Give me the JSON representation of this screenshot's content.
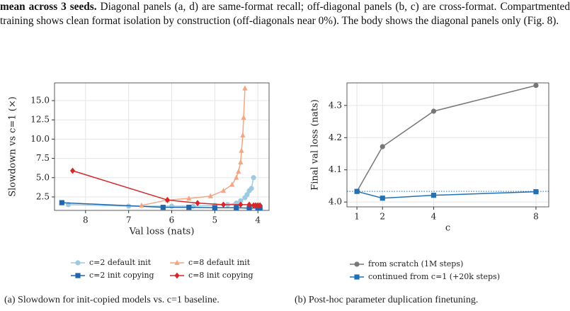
{
  "text": {
    "bold": "mean across 3 seeds.",
    "body": "Diagonal panels (a, d) are same-format recall; off-diagonal panels (b, c) are cross-format. Compartmented training shows clean format isolation by construction (off-diagonals near 0%). The body shows the diagonal panels only (Fig. 8)."
  },
  "chart_data": [
    {
      "type": "line",
      "xlabel": "Val loss (nats)",
      "ylabel": "Slowdown vs c=1 (×)",
      "xlim": [
        8.72,
        3.74
      ],
      "xticks": [
        8,
        7,
        6,
        5,
        4
      ],
      "ylim": [
        0.75,
        17.3
      ],
      "yticks": [
        2.5,
        {
          "value": 5.0,
          "label": "5.0"
        },
        7.5,
        {
          "value": 10.0,
          "label": "10.0"
        },
        12.5,
        {
          "value": 15.0,
          "label": "15.0"
        }
      ],
      "grid": true,
      "series": [
        {
          "name": "c=2 default init",
          "color": "#9ecae1",
          "marker": "circle",
          "x": [
            8.4,
            7.0,
            6.0,
            5.5,
            5.0,
            4.7,
            4.5,
            4.4,
            4.3,
            4.25,
            4.2,
            4.15,
            4.1
          ],
          "values": [
            1.5,
            1.3,
            1.3,
            1.3,
            1.4,
            1.5,
            1.7,
            2.0,
            2.4,
            2.8,
            3.3,
            3.6,
            5.0
          ]
        },
        {
          "name": "c=2 init copying",
          "color": "#2166ac",
          "marker": "square",
          "x": [
            8.55,
            6.2,
            5.6,
            5.0,
            4.5,
            4.2,
            4.0,
            3.95
          ],
          "values": [
            1.75,
            1.15,
            1.15,
            1.1,
            1.1,
            1.05,
            1.05,
            1.05
          ]
        },
        {
          "name": "c=8 default init",
          "color": "#f4a582",
          "marker": "triangle",
          "x": [
            6.7,
            6.1,
            5.6,
            5.1,
            4.8,
            4.6,
            4.5,
            4.45,
            4.4,
            4.38,
            4.35,
            4.33,
            4.3
          ],
          "values": [
            1.4,
            2.1,
            2.3,
            2.6,
            3.3,
            4.1,
            5.0,
            5.8,
            7.0,
            8.5,
            10.5,
            12.8,
            16.6
          ]
        },
        {
          "name": "c=8 init copying",
          "color": "#d62728",
          "marker": "diamond",
          "x": [
            8.3,
            6.1,
            5.4,
            4.8,
            4.4,
            4.2,
            4.1,
            4.05,
            4.0,
            3.95
          ],
          "values": [
            5.9,
            2.1,
            1.7,
            1.5,
            1.5,
            1.5,
            1.4,
            1.4,
            1.4,
            1.4
          ]
        }
      ],
      "caption": "(a) Slowdown for init-copied models vs. c=1 baseline."
    },
    {
      "type": "line",
      "xlabel": "c",
      "ylabel": "Final val loss (nats)",
      "xlim": [
        0.61,
        8.5
      ],
      "xticks": [
        1,
        2,
        4,
        8
      ],
      "ylim": [
        3.985,
        4.37
      ],
      "yticks": [
        {
          "value": 4.0,
          "label": "4.0"
        },
        4.1,
        4.2,
        4.3
      ],
      "grid": true,
      "hline": 4.033,
      "hline_color": "#2166ac",
      "series": [
        {
          "name": "from scratch (1M steps)",
          "color": "#777777",
          "marker": "circle",
          "x": [
            1,
            2,
            4,
            8
          ],
          "values": [
            4.033,
            4.172,
            4.282,
            4.362
          ]
        },
        {
          "name": "continued from c=1 (+20k steps)",
          "color": "#2171b5",
          "marker": "square",
          "x": [
            1,
            2,
            4,
            8
          ],
          "values": [
            4.033,
            4.012,
            4.021,
            4.032
          ]
        }
      ],
      "caption": "(b) Post-hoc parameter duplication finetuning."
    }
  ]
}
